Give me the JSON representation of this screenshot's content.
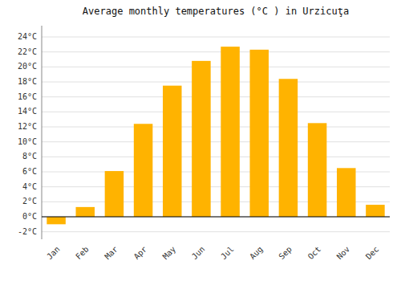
{
  "chart_data": {
    "type": "bar",
    "title": "Average monthly temperatures (°C ) in Urzicuţa",
    "categories": [
      "Jan",
      "Feb",
      "Mar",
      "Apr",
      "May",
      "Jun",
      "Jul",
      "Aug",
      "Sep",
      "Oct",
      "Nov",
      "Dec"
    ],
    "values": [
      -1.0,
      1.3,
      6.1,
      12.4,
      17.5,
      20.8,
      22.7,
      22.3,
      18.4,
      12.5,
      6.5,
      1.6
    ],
    "color": "#FFB300",
    "ylim": [
      -3.0,
      25.5
    ],
    "yticks": [
      {
        "value": -2,
        "label": "-2°C"
      },
      {
        "value": 0,
        "label": "0°C"
      },
      {
        "value": 2,
        "label": "2°C"
      },
      {
        "value": 4,
        "label": "4°C"
      },
      {
        "value": 6,
        "label": "6°C"
      },
      {
        "value": 8,
        "label": "8°C"
      },
      {
        "value": 10,
        "label": "10°C"
      },
      {
        "value": 12,
        "label": "12°C"
      },
      {
        "value": 14,
        "label": "14°C"
      },
      {
        "value": 16,
        "label": "16°C"
      },
      {
        "value": 18,
        "label": "18°C"
      },
      {
        "value": 20,
        "label": "20°C"
      },
      {
        "value": 22,
        "label": "22°C"
      },
      {
        "value": 24,
        "label": "24°C"
      }
    ],
    "grid": true
  }
}
